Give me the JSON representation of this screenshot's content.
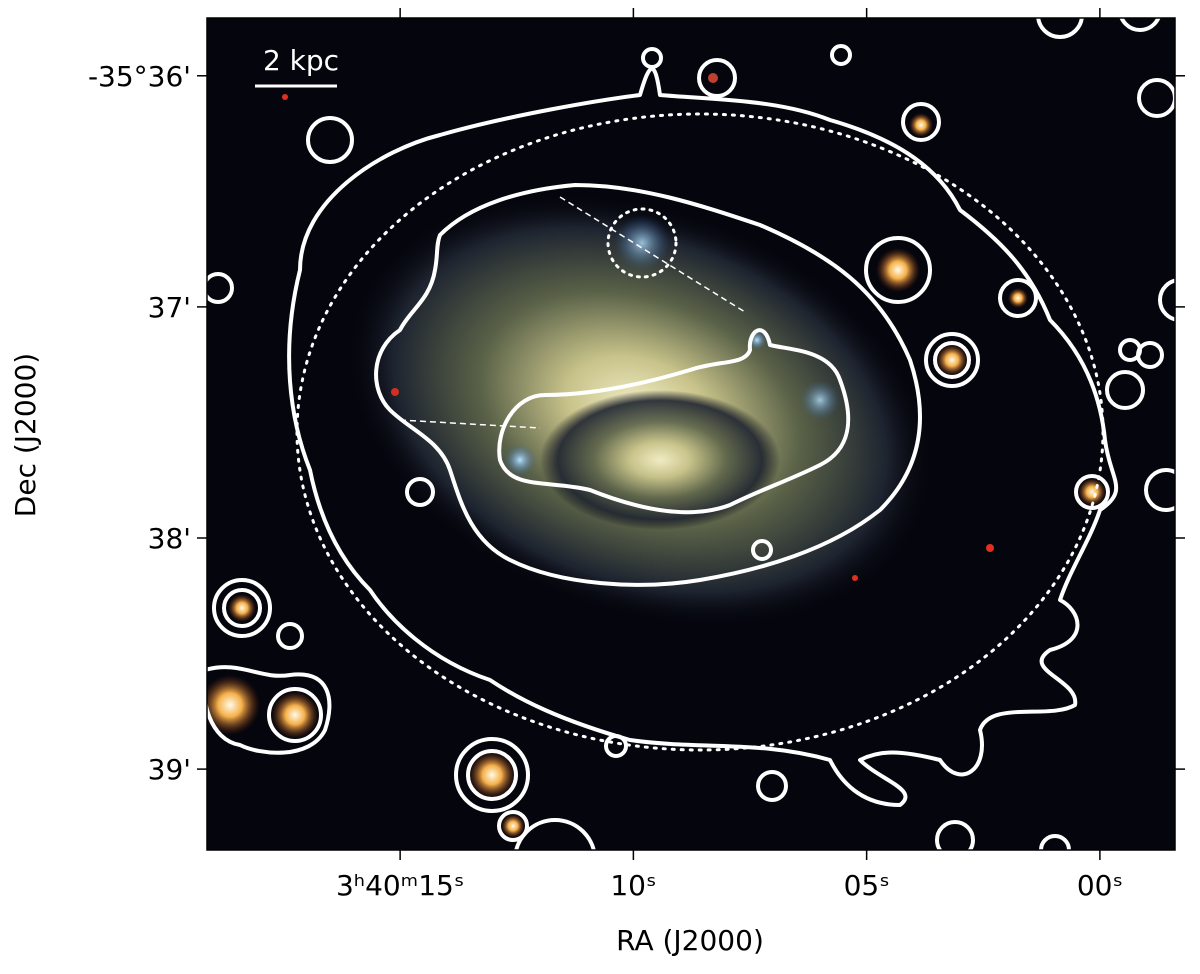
{
  "chart_data": {
    "type": "image",
    "scale_bar_label": "2 kpc",
    "xlabel": "RA (J2000)",
    "ylabel": "Dec (J2000)",
    "xlim": [
      19.14,
      -1.61
    ],
    "ylim": [
      -39.35,
      -35.75
    ],
    "xticks": [
      {
        "value": 15,
        "label": "3ʰ40ᵐ15ˢ"
      },
      {
        "value": 10,
        "label": "10ˢ"
      },
      {
        "value": 5,
        "label": "05ˢ"
      },
      {
        "value": 0,
        "label": "00ˢ"
      }
    ],
    "yticks": [
      {
        "value": -36,
        "label": "-35°36'"
      },
      {
        "value": -37,
        "label": "37'"
      },
      {
        "value": -38,
        "label": "38'"
      },
      {
        "value": -39,
        "label": "39'"
      }
    ]
  }
}
